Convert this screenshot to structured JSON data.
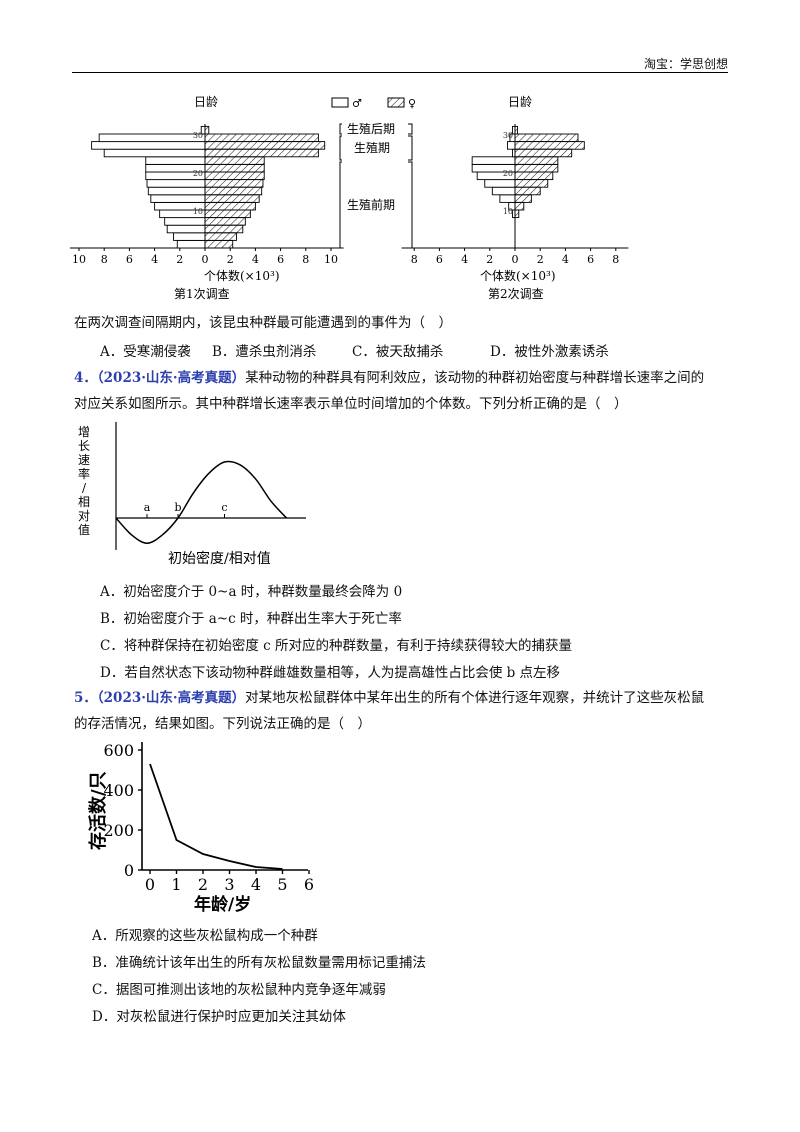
{
  "header": {
    "text": "淘宝：学思创想"
  },
  "fig1": {
    "y_axis_label": "日龄",
    "ticks_y": [
      "30",
      "20",
      "10"
    ],
    "legend": {
      "male": "♂",
      "female": "♀"
    },
    "stages": {
      "post": "生殖后期",
      "repro": "生殖期",
      "pre": "生殖前期"
    },
    "left_chart": {
      "xticks": [
        "10",
        "8",
        "6",
        "4",
        "2",
        "0",
        "2",
        "4",
        "6",
        "8",
        "10"
      ],
      "xlabel": "个体数(×10³)",
      "caption": "第1次调查"
    },
    "right_chart": {
      "xticks": [
        "8",
        "6",
        "4",
        "2",
        "0",
        "2",
        "4",
        "6",
        "8"
      ],
      "xlabel": "个体数(×10³)",
      "caption": "第2次调查"
    }
  },
  "q3": {
    "stem": "在两次调查间隔期内，该昆虫种群最可能遭遇到的事件为（　）",
    "options": [
      "A．受寒潮侵袭",
      "B．遭杀虫剂消杀",
      "C．被天敌捕杀",
      "D．被性外激素诱杀"
    ]
  },
  "q4": {
    "number": "4．",
    "source": "（2023·山东·高考真题）",
    "stem_line1": "某种动物的种群具有阿利效应，该动物的种群初始密度与种群增长速率之间的",
    "stem_line2": "对应关系如图所示。其中种群增长速率表示单位时间增加的个体数。下列分析正确的是（　）",
    "chart": {
      "ylabel_chars": [
        "增",
        "长",
        "速",
        "率",
        "/",
        "相",
        "对",
        "值"
      ],
      "xlabel": "初始密度/相对值",
      "point_labels": [
        "a",
        "b",
        "c"
      ]
    },
    "options": [
      "A．初始密度介于 0~a 时，种群数量最终会降为 0",
      "B．初始密度介于 a~c 时，种群出生率大于死亡率",
      "C．将种群保持在初始密度 c 所对应的种群数量，有利于持续获得较大的捕获量",
      "D．若自然状态下该动物种群雌雄数量相等，人为提高雄性占比会使 b 点左移"
    ]
  },
  "q5": {
    "number": "5．",
    "source": "（2023·山东·高考真题）",
    "stem_line1": "对某地灰松鼠群体中某年出生的所有个体进行逐年观察，并统计了这些灰松鼠",
    "stem_line2": "的存活情况，结果如图。下列说法正确的是（　）",
    "options": [
      "A．所观察的这些灰松鼠构成一个种群",
      "B．准确统计该年出生的所有灰松鼠数量需用标记重捕法",
      "C．据图可推测出该地的灰松鼠种内竞争逐年减弱",
      "D．对灰松鼠进行保护时应更加关注其幼体"
    ]
  },
  "chart_data": [
    {
      "type": "bar",
      "title": "第1次调查",
      "xlabel": "个体数(×10³)",
      "ylabel": "日龄",
      "categories": [
        "0-2",
        "2-4",
        "4-6",
        "6-8",
        "8-10",
        "10-12",
        "12-14",
        "14-16",
        "16-18",
        "18-20",
        "20-22",
        "22-24",
        "24-26",
        "26-28",
        "28-30",
        "30-32"
      ],
      "series": [
        {
          "name": "♂",
          "values": [
            2.2,
            2.5,
            3.0,
            3.2,
            3.6,
            4.0,
            4.3,
            4.5,
            4.6,
            4.7,
            4.7,
            4.7,
            8.0,
            9.0,
            8.4,
            0.3
          ]
        },
        {
          "name": "♀",
          "values": [
            2.2,
            2.5,
            3.0,
            3.2,
            3.6,
            4.0,
            4.3,
            4.5,
            4.6,
            4.7,
            4.7,
            4.7,
            9.0,
            9.5,
            9.0,
            0.3
          ]
        }
      ],
      "xlim": [
        -10,
        10
      ]
    },
    {
      "type": "bar",
      "title": "第2次调查",
      "xlabel": "个体数(×10³)",
      "ylabel": "日龄",
      "categories": [
        "0-2",
        "2-4",
        "4-6",
        "6-8",
        "8-10",
        "10-12",
        "12-14",
        "14-16",
        "16-18",
        "18-20",
        "20-22",
        "22-24",
        "24-26",
        "26-28",
        "28-30",
        "30-32"
      ],
      "series": [
        {
          "name": "♂",
          "values": [
            0,
            0,
            0,
            0,
            0.2,
            0.5,
            1.2,
            1.8,
            2.4,
            3.0,
            3.4,
            3.4,
            0.2,
            0.6,
            0.4,
            0.2
          ]
        },
        {
          "name": "♀",
          "values": [
            0,
            0,
            0,
            0,
            0.3,
            0.7,
            1.3,
            2.0,
            2.6,
            3.0,
            3.4,
            3.4,
            4.5,
            5.5,
            5.0,
            0.2
          ]
        }
      ],
      "xlim": [
        -8,
        8
      ]
    },
    {
      "type": "line",
      "xlabel": "初始密度/相对值",
      "ylabel": "增长速率/相对值",
      "x": [
        0,
        0.5,
        1,
        1.5,
        2,
        2.5,
        3,
        3.5,
        4,
        4.5,
        5,
        5.5
      ],
      "values": [
        0,
        -0.6,
        -0.9,
        -0.6,
        0,
        0.9,
        1.6,
        2.0,
        1.9,
        1.4,
        0.6,
        0
      ],
      "marked_points": {
        "a": 1.0,
        "b": 2.0,
        "c": 3.5
      }
    },
    {
      "type": "line",
      "xlabel": "年龄/岁",
      "ylabel": "存活数/只",
      "x": [
        0,
        1,
        2,
        3,
        4,
        5
      ],
      "values": [
        530,
        150,
        80,
        45,
        15,
        5
      ],
      "xticks": [
        "0",
        "1",
        "2",
        "3",
        "4",
        "5",
        "6"
      ],
      "yticks": [
        "0",
        "200",
        "400",
        "600"
      ],
      "xlim": [
        0,
        6
      ],
      "ylim": [
        0,
        600
      ]
    }
  ]
}
